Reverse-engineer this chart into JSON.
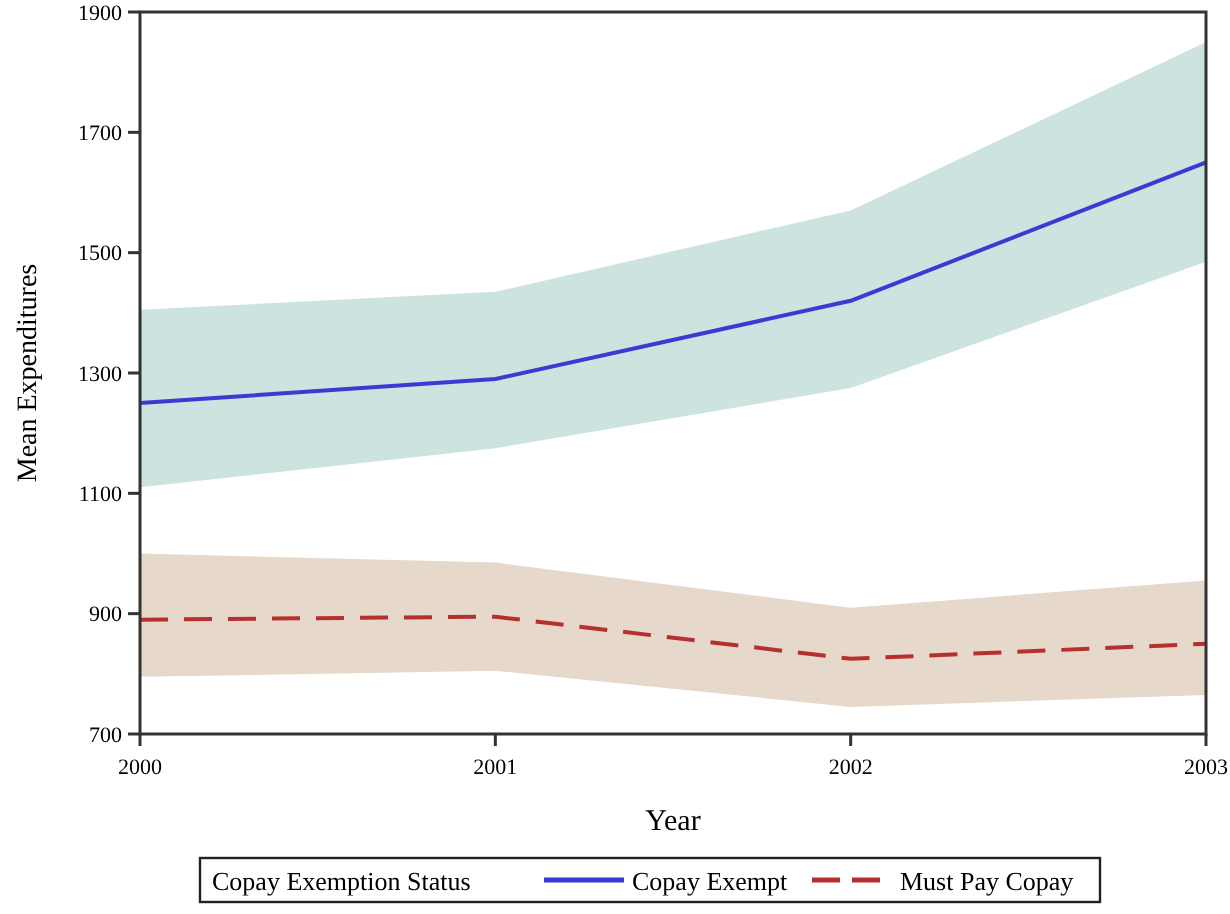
{
  "chart_data": {
    "type": "line",
    "xlabel": "Year",
    "ylabel": "Mean Expenditures",
    "legend_title": "Copay Exemption Status",
    "legend": "bottom",
    "grid": false,
    "x": [
      2000,
      2001,
      2002,
      2003
    ],
    "xlim": [
      2000,
      2003
    ],
    "xticks": [
      2000,
      2001,
      2002,
      2003
    ],
    "ylim": [
      700,
      1900
    ],
    "yticks": [
      700,
      900,
      1100,
      1300,
      1500,
      1700,
      1900
    ],
    "series": [
      {
        "name": "Copay Exempt",
        "color": "#3b3bd4",
        "line_style": "solid",
        "values": [
          1250,
          1290,
          1420,
          1650
        ],
        "lower": [
          1110,
          1175,
          1275,
          1485
        ],
        "upper": [
          1405,
          1435,
          1570,
          1850
        ]
      },
      {
        "name": "Must Pay Copay",
        "color": "#b5302e",
        "line_style": "dashed",
        "values": [
          890,
          895,
          825,
          850
        ],
        "lower": [
          795,
          805,
          745,
          765
        ],
        "upper": [
          1000,
          985,
          910,
          955
        ]
      }
    ]
  }
}
